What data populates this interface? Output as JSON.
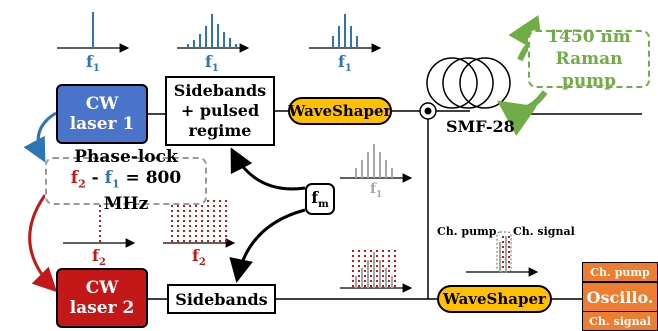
{
  "cw_laser_1": {
    "line1": "CW",
    "line2": "laser 1",
    "color": "#4a74c9"
  },
  "cw_laser_2": {
    "line1": "CW",
    "line2": "laser 2",
    "color": "#c41818"
  },
  "sidebands_pulsed": {
    "line1": "Sidebands",
    "line2": "+ pulsed",
    "line3": "regime"
  },
  "sidebands": {
    "label": "Sidebands"
  },
  "waveshaper_top": {
    "label": "WaveShaper"
  },
  "waveshaper_bottom": {
    "label": "WaveShaper"
  },
  "phase_lock": {
    "title": "Phase-lock",
    "f2": "f",
    "f2_sub": "2",
    "minus": " - ",
    "f1": "f",
    "f1_sub": "1",
    "value": " = 800 MHz"
  },
  "fm": {
    "base": "f",
    "sub": "m"
  },
  "raman_pump": {
    "line1": "1450 nm",
    "line2": "Raman pump",
    "color": "#70ad47"
  },
  "fiber": {
    "label": "SMF-28"
  },
  "spectra": {
    "top1": {
      "base": "f",
      "sub": "1"
    },
    "top2": {
      "base": "f",
      "sub": "1"
    },
    "top3": {
      "base": "f",
      "sub": "1"
    },
    "middle": {
      "base": "f",
      "sub": "1"
    },
    "laser2": {
      "base": "f",
      "sub": "2"
    },
    "sidebands2": {
      "base": "f",
      "sub": "2"
    }
  },
  "channels": {
    "pump": "Ch. pump",
    "signal": "Ch. signal"
  },
  "oscilloscope": {
    "top": "Ch. pump",
    "main": "Oscillo.",
    "bottom": "Ch. signal",
    "color": "#ed7d31"
  },
  "colors": {
    "blue": "#4a74c9",
    "red": "#c41818",
    "yellow": "#ffc000",
    "gray": "#a6a6a6"
  }
}
